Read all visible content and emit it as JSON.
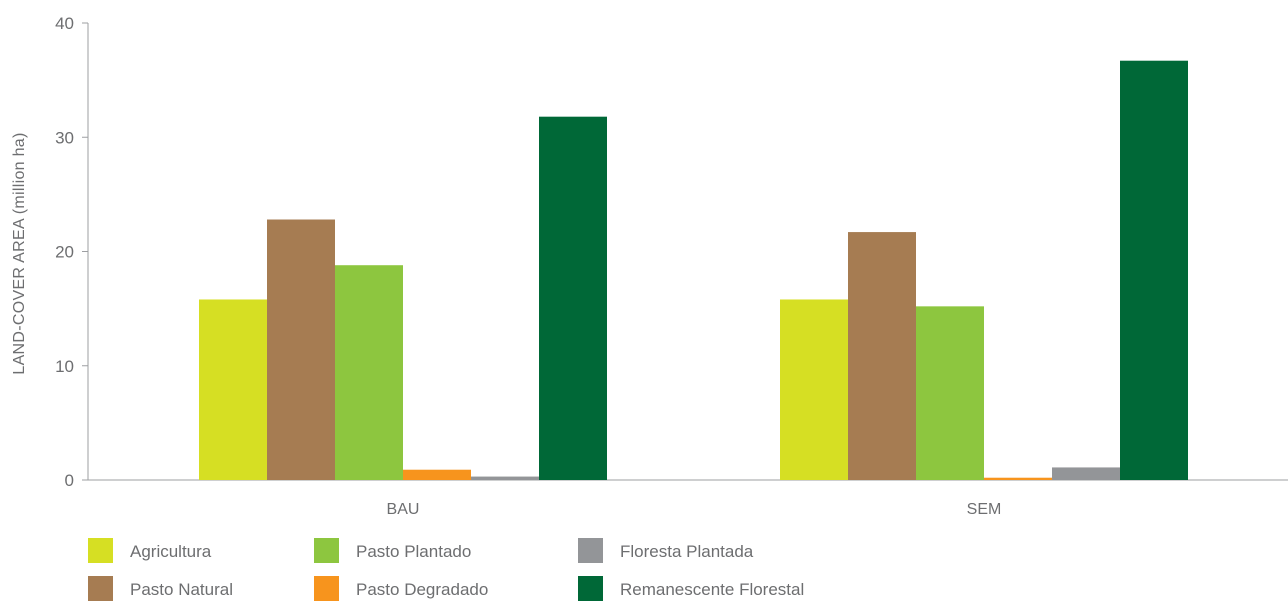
{
  "chart_data": {
    "type": "bar",
    "title": "",
    "xlabel": "",
    "ylabel": "LAND-COVER AREA (million ha)",
    "ylim": [
      0,
      40
    ],
    "yticks": [
      0,
      10,
      20,
      30,
      40
    ],
    "grid": false,
    "legend_position": "bottom",
    "categories": [
      "BAU",
      "SEM"
    ],
    "series": [
      {
        "name": "Agricultura",
        "color": "#d6df23",
        "values": [
          15.8,
          15.8
        ]
      },
      {
        "name": "Pasto Natural",
        "color": "#a67c52",
        "values": [
          22.8,
          21.7
        ]
      },
      {
        "name": "Pasto Plantado",
        "color": "#8dc63f",
        "values": [
          18.8,
          15.2
        ]
      },
      {
        "name": "Pasto Degradado",
        "color": "#f7941d",
        "values": [
          0.9,
          0.2
        ]
      },
      {
        "name": "Floresta Plantada",
        "color": "#939598",
        "values": [
          0.3,
          1.1
        ]
      },
      {
        "name": "Remanescente Florestal",
        "color": "#006837",
        "values": [
          31.8,
          36.7
        ]
      }
    ]
  }
}
